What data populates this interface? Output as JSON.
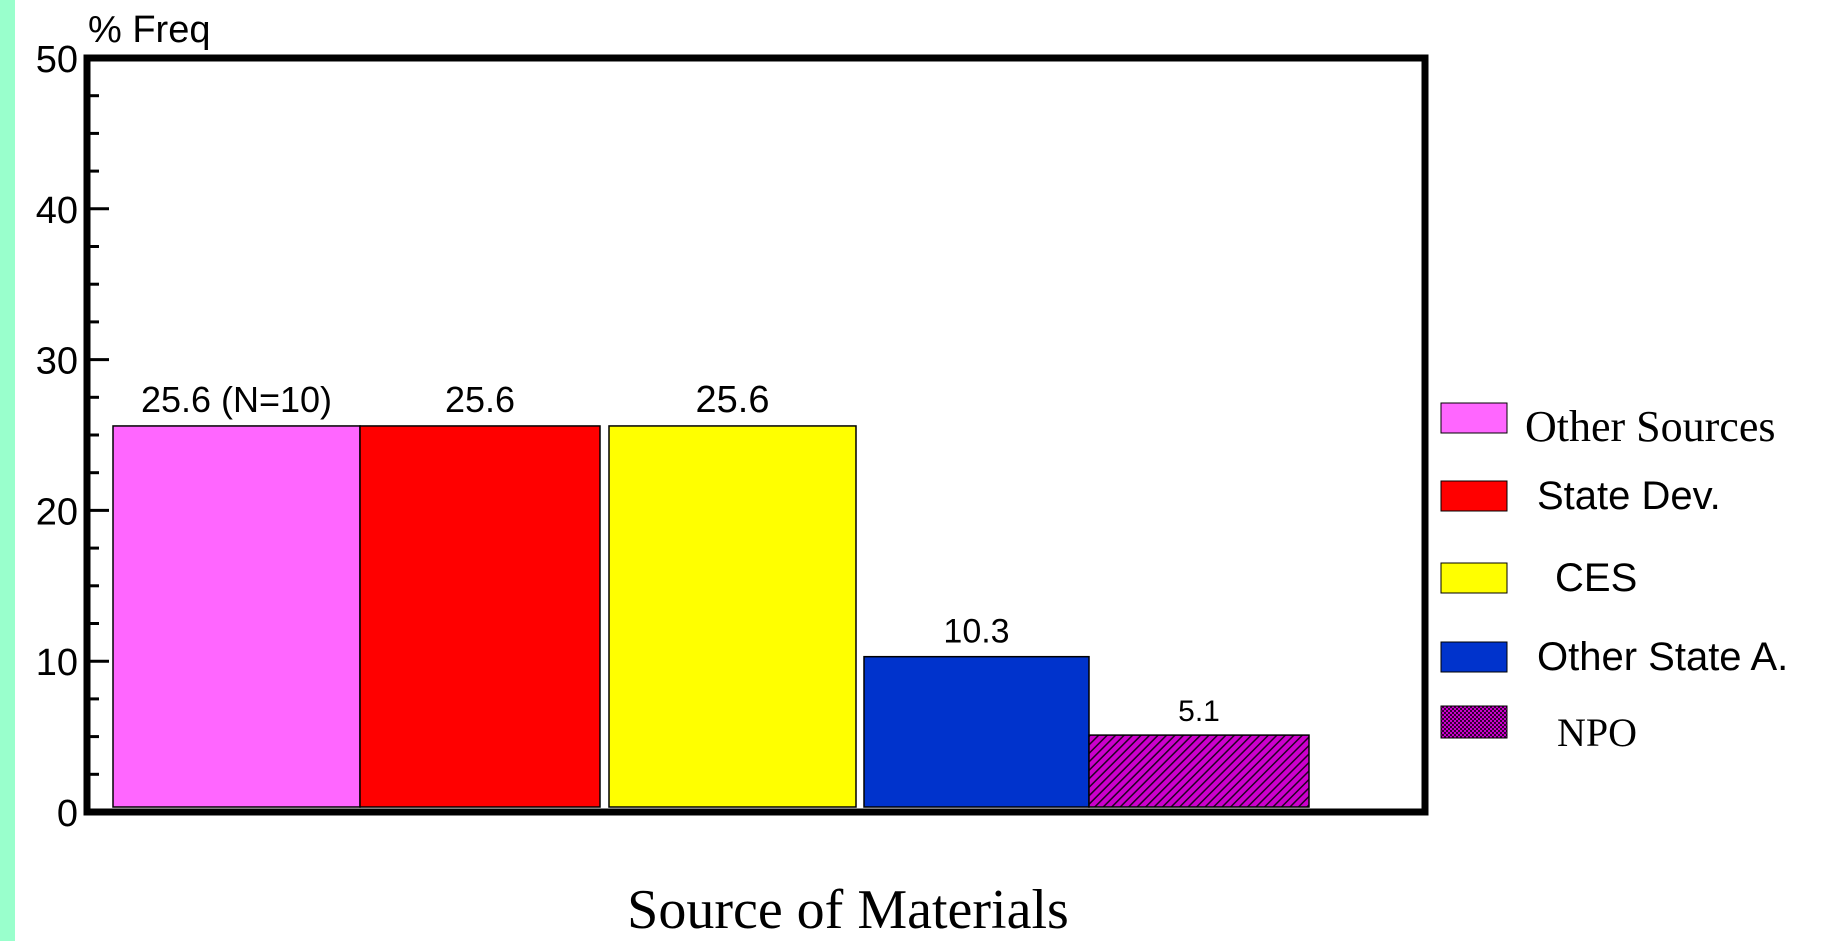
{
  "chart_data": {
    "type": "bar",
    "ylabel": "% Freq",
    "xlabel": "Source of Materials",
    "ylim": [
      0,
      50
    ],
    "yticks": [
      0,
      10,
      20,
      30,
      40,
      50
    ],
    "series": [
      {
        "name": "Other Sources",
        "value": 25.6,
        "label": "25.6 (N=10)",
        "color": "#ff66ff",
        "pattern": "solid"
      },
      {
        "name": "State Dev.",
        "value": 25.6,
        "label": "25.6",
        "color": "#ff0000",
        "pattern": "solid"
      },
      {
        "name": "CES",
        "value": 25.6,
        "label": "25.6",
        "color": "#ffff00",
        "pattern": "solid"
      },
      {
        "name": "Other State A.",
        "value": 10.3,
        "label": "10.3",
        "color": "#0033cc",
        "pattern": "solid"
      },
      {
        "name": "NPO",
        "value": 5.1,
        "label": "5.1",
        "color": "#cc00cc",
        "pattern": "hatched"
      }
    ],
    "legend_position": "right",
    "grid": false
  },
  "colors": {
    "background_strip": "#99ffcc",
    "plot_background": "#ffffff",
    "axis": "#000000"
  }
}
